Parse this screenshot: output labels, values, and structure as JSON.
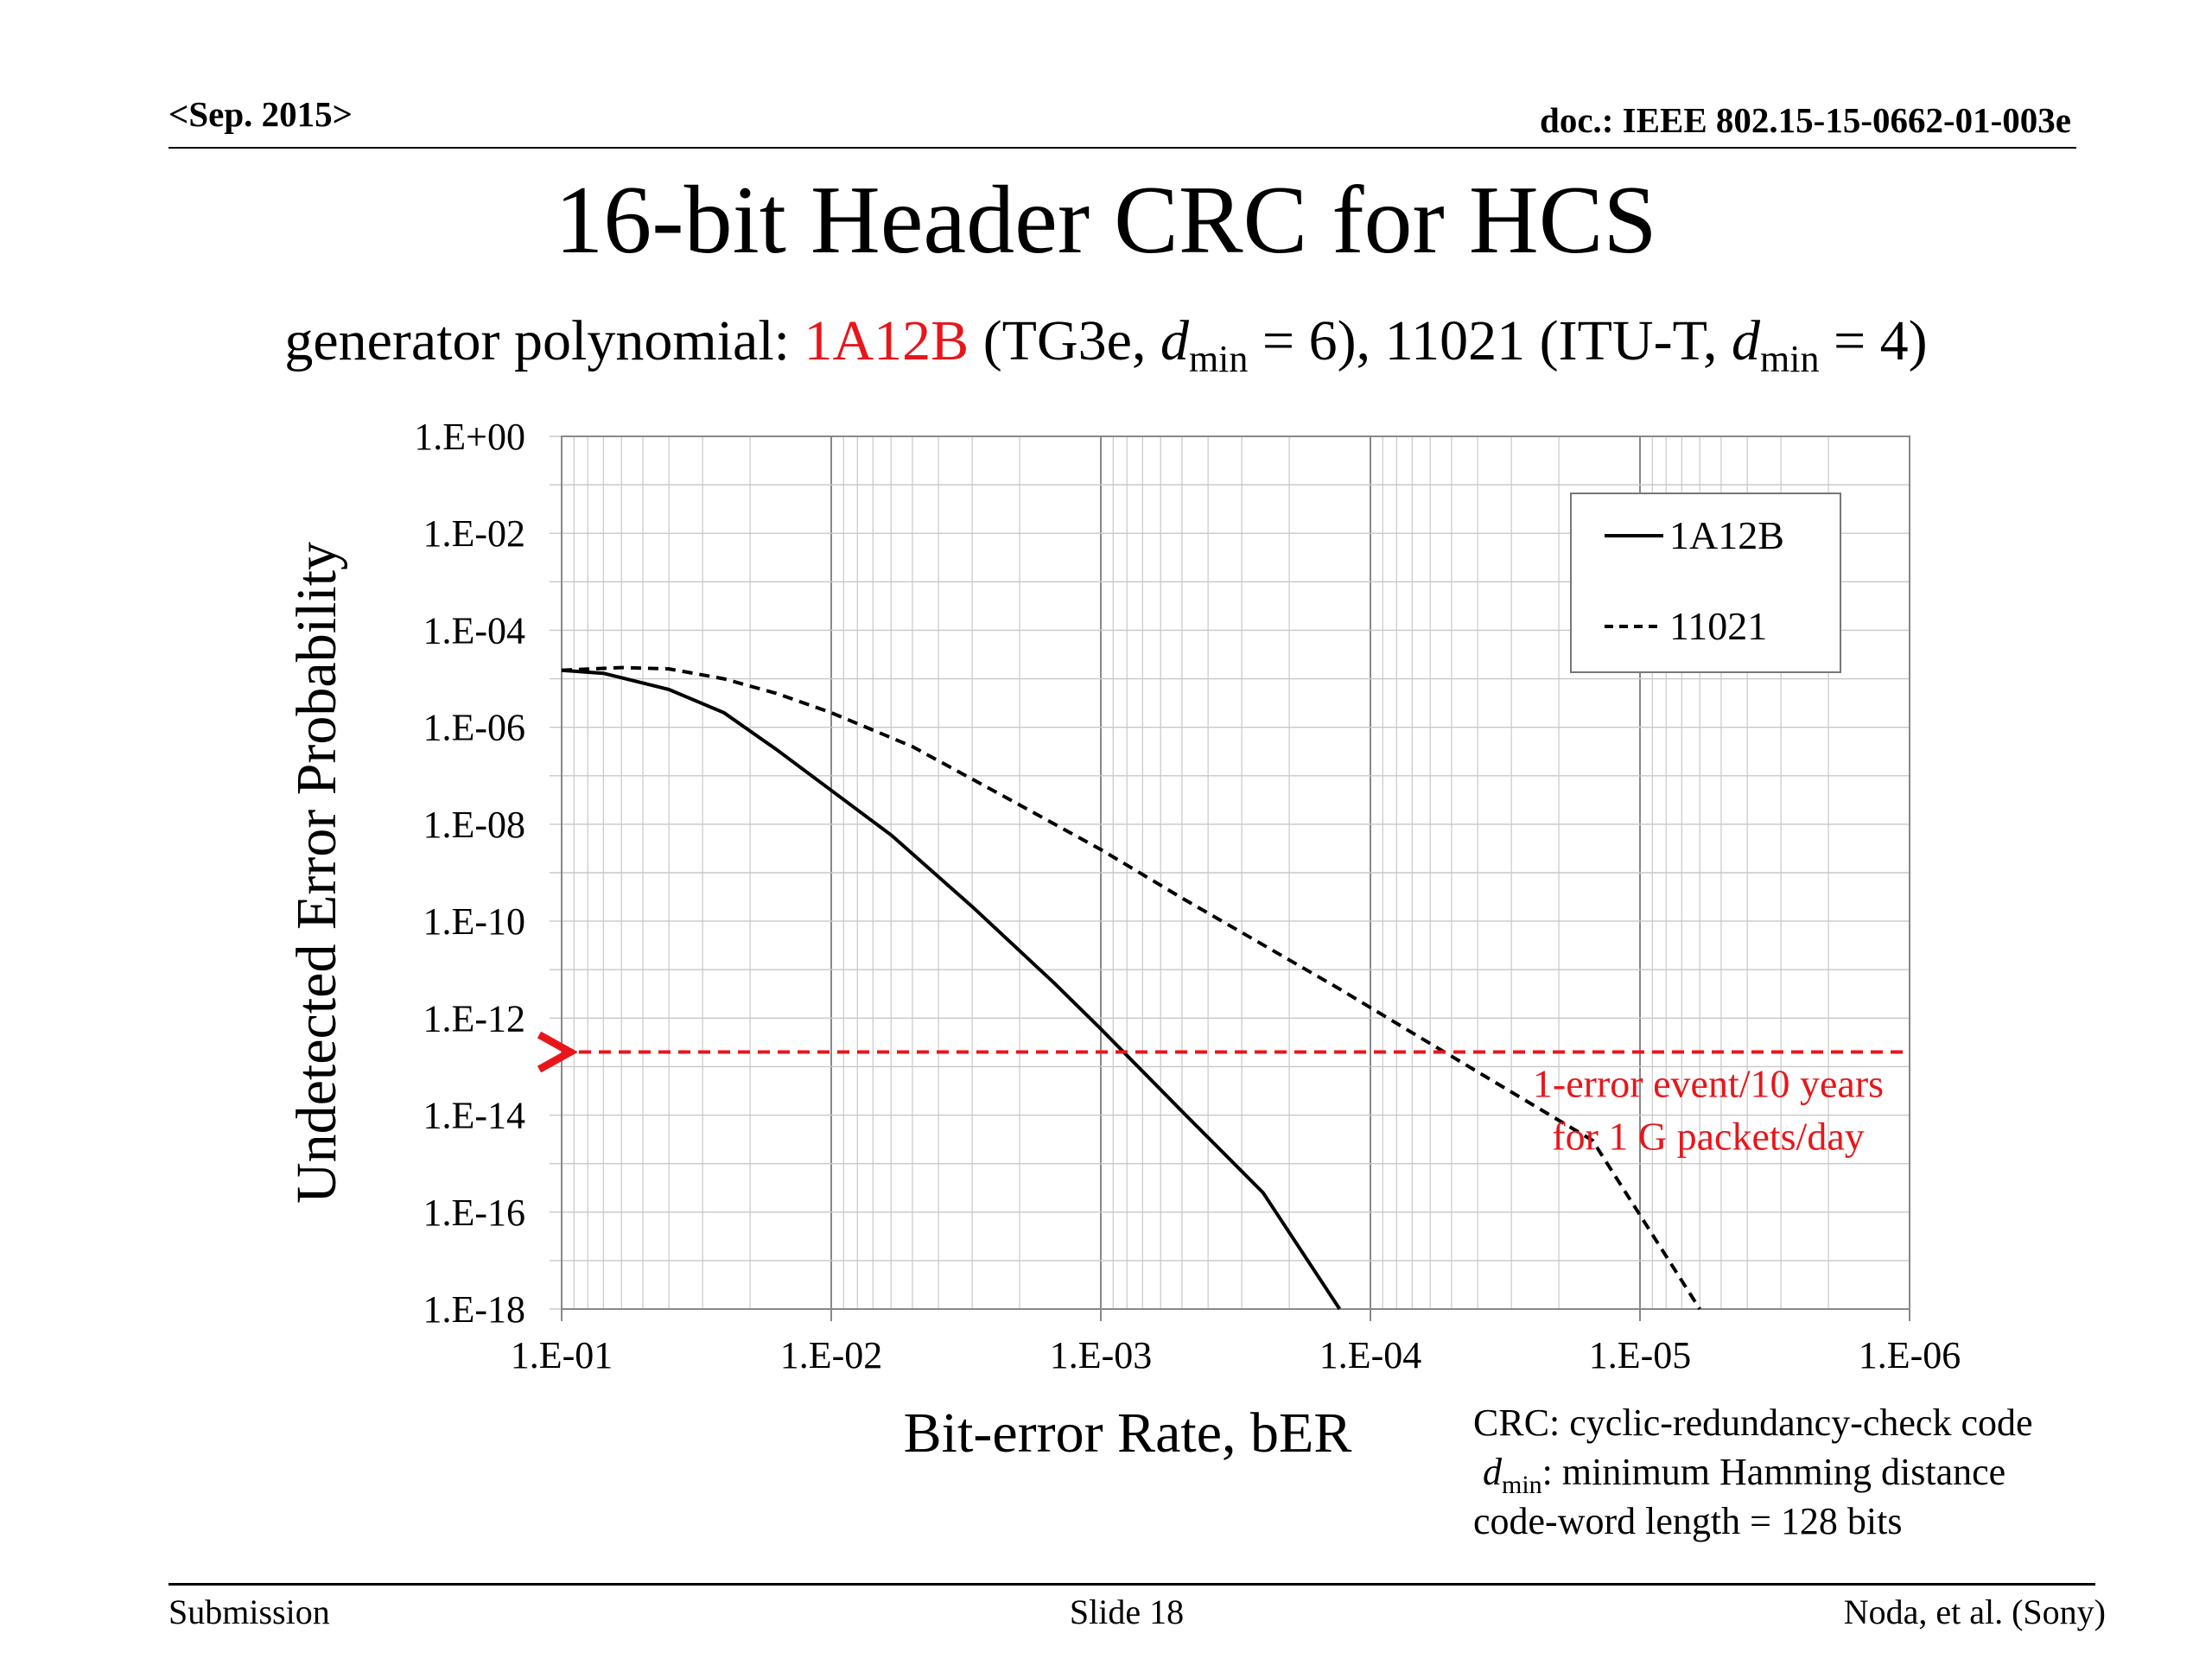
{
  "header": {
    "date": "<Sep. 2015>",
    "doc": "doc.: IEEE 802.15-15-0662-01-003e"
  },
  "title": "16-bit Header CRC for HCS",
  "subtitle": {
    "prefix": "generator polynomial: ",
    "poly1": "1A12B",
    "poly1_rest": " (TG3e, ",
    "d": "d",
    "min": "min",
    "eq1": " = 6), 11021 (ITU-T, ",
    "eq2": " = 4)"
  },
  "notes": {
    "line1": "CRC: cyclic-redundancy-check code",
    "d": "d",
    "min": "min",
    "line2_rest": ": minimum Hamming distance",
    "line3": "code-word length = 128 bits"
  },
  "footer": {
    "left": "Submission",
    "center": "Slide 18",
    "right": "Noda, et al. (Sony)"
  },
  "colors": {
    "accent_red": "#e8161b",
    "grid": "#c8c8c8",
    "line": "#000000"
  },
  "chart_data": {
    "type": "line",
    "xlabel": "Bit-error Rate, bER",
    "ylabel": "Undetected Error Probability",
    "x_scale": "log-reversed",
    "y_scale": "log",
    "xlim": [
      0.1,
      1e-06
    ],
    "ylim": [
      1e-18,
      1
    ],
    "x_ticks": [
      "1.E-01",
      "1.E-02",
      "1.E-03",
      "1.E-04",
      "1.E-05",
      "1.E-06"
    ],
    "y_ticks": [
      "1.E+00",
      "1.E-02",
      "1.E-04",
      "1.E-06",
      "1.E-08",
      "1.E-10",
      "1.E-12",
      "1.E-14",
      "1.E-16",
      "1.E-18"
    ],
    "grid": true,
    "legend_position": "top-right",
    "series": [
      {
        "name": "1A12B",
        "style": "solid",
        "x": [
          0.1,
          0.07,
          0.04,
          0.025,
          0.016,
          0.01,
          0.006,
          0.003,
          0.0015,
          0.001,
          0.0005,
          0.00025,
          0.00013
        ],
        "y": [
          1.5e-05,
          1.3e-05,
          6e-06,
          2e-06,
          3.5e-07,
          5e-08,
          6e-09,
          2e-10,
          5.5e-12,
          6e-13,
          1.2e-14,
          2.5e-16,
          1e-18
        ]
      },
      {
        "name": "11021",
        "style": "dashed",
        "x": [
          0.1,
          0.06,
          0.04,
          0.025,
          0.016,
          0.01,
          0.005,
          0.002,
          0.001,
          0.0005,
          0.00013,
          7e-05,
          3e-05,
          1.5e-05,
          6e-06
        ],
        "y": [
          1.5e-05,
          1.7e-05,
          1.6e-05,
          1e-05,
          5e-06,
          2e-06,
          4e-07,
          2.5e-08,
          3e-09,
          3e-10,
          4e-12,
          5e-13,
          3e-14,
          3e-15,
          1e-18
        ]
      }
    ],
    "annotation": {
      "y": 2e-13,
      "style": "dashed-arrow-left",
      "text_line1": "1-error event/10 years",
      "text_line2": "for 1 G packets/day"
    }
  }
}
